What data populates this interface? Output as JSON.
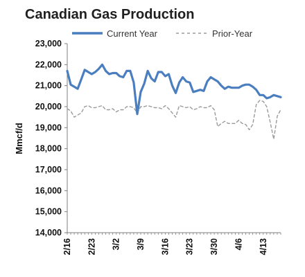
{
  "chart_data": {
    "type": "line",
    "title": "Canadian Gas Production",
    "ylabel": "Mmcf/d",
    "xlabel": "",
    "ylim": [
      14000,
      23000
    ],
    "yticks": [
      "14,000",
      "15,000",
      "16,000",
      "17,000",
      "18,000",
      "19,000",
      "20,000",
      "21,000",
      "22,000",
      "23,000"
    ],
    "ytick_values": [
      14000,
      15000,
      16000,
      17000,
      18000,
      19000,
      20000,
      21000,
      22000,
      23000
    ],
    "xticks": [
      "2/16",
      "2/23",
      "3/2",
      "3/9",
      "3/16",
      "3/23",
      "3/30",
      "4/6",
      "4/13"
    ],
    "xtick_positions": [
      0,
      7,
      14,
      21,
      28,
      35,
      42,
      49,
      56
    ],
    "x_range": [
      0,
      61
    ],
    "grid": false,
    "legend_position": "top",
    "colors": {
      "current": "#4a7ebf",
      "prior": "#9a9a9a",
      "axis": "#7f7f7f"
    },
    "series": [
      {
        "name": "Current Year",
        "style": "solid",
        "x": [
          0,
          1,
          2,
          3,
          4,
          5,
          6,
          7,
          8,
          9,
          10,
          11,
          12,
          13,
          14,
          15,
          16,
          17,
          18,
          19,
          20,
          21,
          22,
          23,
          24,
          25,
          26,
          27,
          28,
          29,
          30,
          31,
          32,
          33,
          34,
          35,
          36,
          37,
          38,
          39,
          40,
          41,
          42,
          43,
          44,
          45,
          46,
          47,
          48,
          49,
          50,
          51,
          52,
          53,
          54,
          55,
          56,
          57,
          58,
          59,
          60,
          61
        ],
        "values": [
          21700,
          21050,
          20950,
          20850,
          21300,
          21750,
          21650,
          21550,
          21650,
          21800,
          22000,
          21700,
          21550,
          21600,
          21600,
          21450,
          21400,
          21700,
          21700,
          21150,
          19650,
          20700,
          21100,
          21700,
          21350,
          21200,
          21650,
          21650,
          21450,
          21550,
          21000,
          20650,
          21150,
          21400,
          21200,
          21150,
          20700,
          20750,
          20800,
          20750,
          21200,
          21400,
          21300,
          21200,
          21000,
          20850,
          20950,
          20900,
          20900,
          20900,
          21000,
          21050,
          21050,
          20950,
          20800,
          20550,
          20550,
          20400,
          20450,
          20550,
          20500,
          20450
        ]
      },
      {
        "name": "Prior-Year",
        "style": "dashed",
        "x": [
          0,
          1,
          2,
          3,
          4,
          5,
          6,
          7,
          8,
          9,
          10,
          11,
          12,
          13,
          14,
          15,
          16,
          17,
          18,
          19,
          20,
          21,
          22,
          23,
          24,
          25,
          26,
          27,
          28,
          29,
          30,
          31,
          32,
          33,
          34,
          35,
          36,
          37,
          38,
          39,
          40,
          41,
          42,
          43,
          44,
          45,
          46,
          47,
          48,
          49,
          50,
          51,
          52,
          53,
          54,
          55,
          56,
          57,
          58,
          59,
          60,
          61
        ],
        "values": [
          19900,
          19800,
          19500,
          19600,
          19700,
          20000,
          20050,
          19950,
          19950,
          20000,
          20050,
          19850,
          19850,
          19900,
          19750,
          19850,
          19850,
          20000,
          20000,
          19950,
          19700,
          20000,
          20000,
          20050,
          20000,
          19950,
          19950,
          19900,
          20050,
          19900,
          19700,
          19500,
          20050,
          20000,
          19950,
          20000,
          19850,
          19900,
          20000,
          19950,
          19950,
          20050,
          19850,
          19050,
          19200,
          19300,
          19200,
          19200,
          19200,
          19350,
          19200,
          19150,
          18900,
          19150,
          20100,
          20300,
          20250,
          20000,
          19250,
          18450,
          19550,
          19850
        ]
      }
    ]
  }
}
